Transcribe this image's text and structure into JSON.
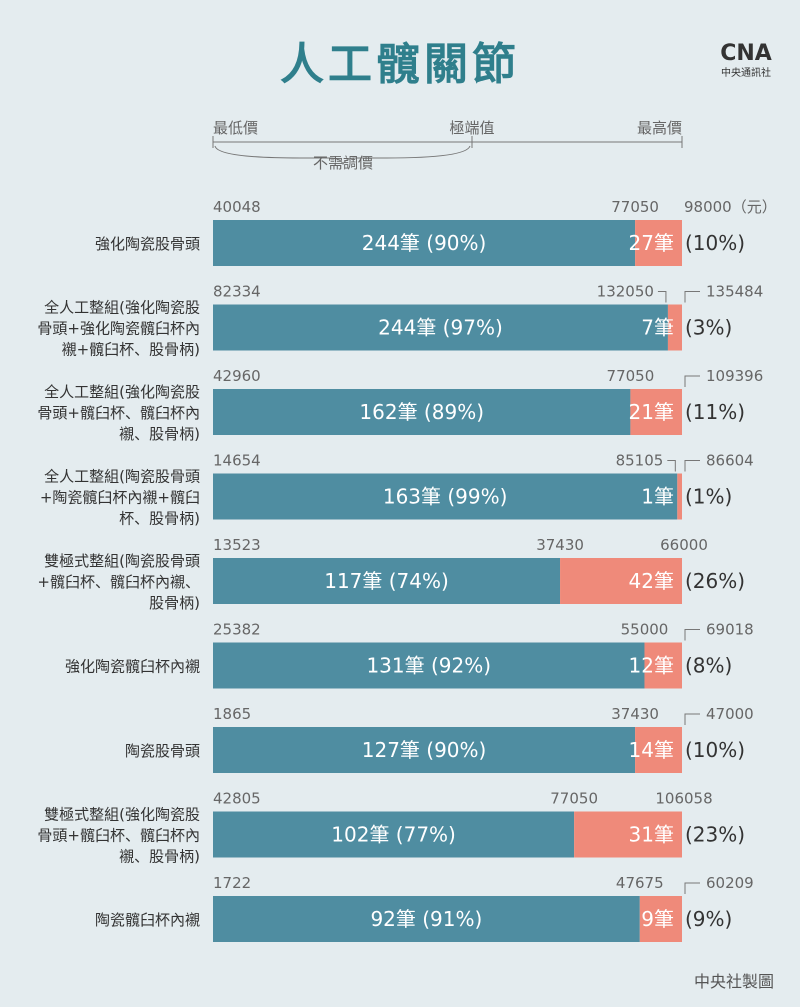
{
  "title": "人工髖關節",
  "logo": {
    "mark": "CNA",
    "text": "中央通訊社"
  },
  "credit": "中央社製圖",
  "legend": {
    "min_label": "最低價",
    "extreme_label": "極端值",
    "max_label": "最高價",
    "no_adjust_label": "不需調價"
  },
  "colors": {
    "main": "#4f8da1",
    "extreme": "#ef8a7a",
    "text_dark": "#333333",
    "text_grey": "#666666",
    "title": "#2f7f8c"
  },
  "chart_data": {
    "type": "bar",
    "orientation": "horizontal",
    "stacked": true,
    "unit": "（元）",
    "categories": [
      "強化陶瓷股骨頭",
      "全人工整組(強化陶瓷股骨頭+強化陶瓷髖臼杯內襯+髖臼杯、股骨柄)",
      "全人工整組(強化陶瓷股骨頭+髖臼杯、髖臼杯內襯、股骨柄)",
      "全人工整組(陶瓷股骨頭+陶瓷髖臼杯內襯+髖臼杯、股骨柄)",
      "雙極式整組(陶瓷股骨頭+髖臼杯、髖臼杯內襯、股骨柄)",
      "強化陶瓷髖臼杯內襯",
      "陶瓷股骨頭",
      "雙極式整組(強化陶瓷股骨頭+髖臼杯、髖臼杯內襯、股骨柄)",
      "陶瓷髖臼杯內襯"
    ],
    "category_lines": [
      [
        "強化陶瓷股骨頭"
      ],
      [
        "全人工整組(強化陶瓷股",
        "骨頭+強化陶瓷髖臼杯內",
        "襯+髖臼杯、股骨柄)"
      ],
      [
        "全人工整組(強化陶瓷股",
        "骨頭+髖臼杯、髖臼杯內",
        "襯、股骨柄)"
      ],
      [
        "全人工整組(陶瓷股骨頭",
        "+陶瓷髖臼杯內襯+髖臼",
        "杯、股骨柄)"
      ],
      [
        "雙極式整組(陶瓷股骨頭",
        "+髖臼杯、髖臼杯內襯、",
        "股骨柄)"
      ],
      [
        "強化陶瓷髖臼杯內襯"
      ],
      [
        "陶瓷股骨頭"
      ],
      [
        "雙極式整組(強化陶瓷股",
        "骨頭+髖臼杯、髖臼杯內",
        "襯、股骨柄)"
      ],
      [
        "陶瓷髖臼杯內襯"
      ]
    ],
    "min_price": [
      40048,
      82334,
      42960,
      14654,
      13523,
      25382,
      1865,
      42805,
      1722
    ],
    "extreme_price": [
      77050,
      132050,
      77050,
      85105,
      37430,
      55000,
      37430,
      77050,
      47675
    ],
    "max_price": [
      98000,
      135484,
      109396,
      86604,
      66000,
      69018,
      47000,
      106058,
      60209
    ],
    "series": [
      {
        "name": "不需調價",
        "values": [
          244,
          244,
          162,
          163,
          117,
          131,
          127,
          102,
          92
        ],
        "labels": [
          "244筆 (90%)",
          "244筆 (97%)",
          "162筆 (89%)",
          "163筆 (99%)",
          "117筆 (74%)",
          "131筆 (92%)",
          "127筆 (90%)",
          "102筆 (77%)",
          "92筆 (91%)"
        ]
      },
      {
        "name": "極端值",
        "values": [
          27,
          7,
          21,
          1,
          42,
          12,
          14,
          31,
          9
        ],
        "labels": [
          "27筆",
          "7筆",
          "21筆",
          "1筆",
          "42筆",
          "12筆",
          "14筆",
          "31筆",
          "9筆"
        ],
        "pct": [
          "(10%)",
          "(3%)",
          "(11%)",
          "(1%)",
          "(26%)",
          "(8%)",
          "(10%)",
          "(23%)",
          "(9%)"
        ]
      }
    ],
    "share_pct": [
      [
        90,
        10
      ],
      [
        97,
        3
      ],
      [
        89,
        11
      ],
      [
        99,
        1
      ],
      [
        74,
        26
      ],
      [
        92,
        8
      ],
      [
        90,
        10
      ],
      [
        77,
        23
      ],
      [
        91,
        9
      ]
    ]
  }
}
